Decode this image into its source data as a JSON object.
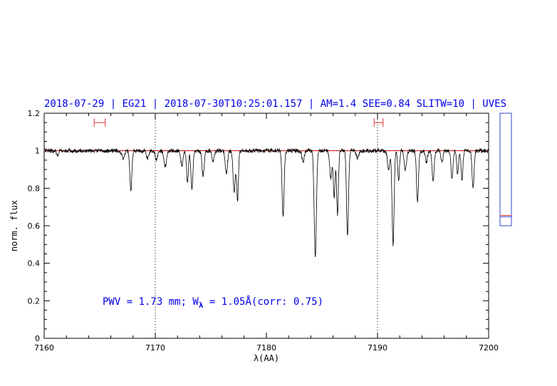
{
  "chart_data": {
    "type": "line",
    "title": "2018-07-29 | EG21 | 2018-07-30T10:25:01.157 | AM=1.4  SEE=0.84  SLITW=10 | UVES",
    "xlabel": "λ(AA)",
    "ylabel": "norm. flux",
    "xlim": [
      7160,
      7200
    ],
    "ylim": [
      0,
      1.2
    ],
    "x_ticks": [
      7160,
      7170,
      7180,
      7190,
      7200
    ],
    "x_tick_labels": [
      "7160",
      "7170",
      "7180",
      "7190",
      "7200"
    ],
    "y_ticks": [
      0,
      0.2,
      0.4,
      0.6,
      0.8,
      1,
      1.2
    ],
    "y_tick_labels": [
      "0",
      "0.2",
      "0.4",
      "0.6",
      "0.8",
      "1",
      "1.2"
    ],
    "reference_level": 1.0,
    "vertical_markers": [
      7170,
      7190
    ],
    "continuum_windows": [
      {
        "x_from": 7164.5,
        "x_to": 7165.5,
        "y": 1.15
      },
      {
        "x_from": 7189.7,
        "x_to": 7190.5,
        "y": 1.15
      }
    ],
    "side_bar": {
      "range": [
        0.6,
        1.2
      ],
      "marks": [
        0.655,
        0.648
      ]
    },
    "annotation": {
      "prefix": "PWV = 1.73 mm; W",
      "subscript": "λ",
      "suffix": " = 1.05Å(corr: 0.75)"
    },
    "absorption_lines": [
      {
        "x": 7161.2,
        "depth": 0.02,
        "width": 0.1
      },
      {
        "x": 7167.1,
        "depth": 0.04,
        "width": 0.12
      },
      {
        "x": 7167.8,
        "depth": 0.22,
        "width": 0.09
      },
      {
        "x": 7169.3,
        "depth": 0.04,
        "width": 0.1
      },
      {
        "x": 7170.1,
        "depth": 0.05,
        "width": 0.1
      },
      {
        "x": 7170.9,
        "depth": 0.08,
        "width": 0.12
      },
      {
        "x": 7172.4,
        "depth": 0.08,
        "width": 0.1
      },
      {
        "x": 7172.9,
        "depth": 0.17,
        "width": 0.08
      },
      {
        "x": 7173.3,
        "depth": 0.2,
        "width": 0.09
      },
      {
        "x": 7174.3,
        "depth": 0.13,
        "width": 0.1
      },
      {
        "x": 7175.2,
        "depth": 0.06,
        "width": 0.1
      },
      {
        "x": 7176.4,
        "depth": 0.12,
        "width": 0.1
      },
      {
        "x": 7177.1,
        "depth": 0.22,
        "width": 0.1
      },
      {
        "x": 7177.4,
        "depth": 0.27,
        "width": 0.08
      },
      {
        "x": 7181.5,
        "depth": 0.35,
        "width": 0.09
      },
      {
        "x": 7183.3,
        "depth": 0.06,
        "width": 0.1
      },
      {
        "x": 7184.4,
        "depth": 0.56,
        "width": 0.1
      },
      {
        "x": 7185.8,
        "depth": 0.15,
        "width": 0.1
      },
      {
        "x": 7186.1,
        "depth": 0.25,
        "width": 0.08
      },
      {
        "x": 7186.4,
        "depth": 0.34,
        "width": 0.08
      },
      {
        "x": 7187.3,
        "depth": 0.45,
        "width": 0.09
      },
      {
        "x": 7188.2,
        "depth": 0.04,
        "width": 0.1
      },
      {
        "x": 7191.0,
        "depth": 0.1,
        "width": 0.1
      },
      {
        "x": 7191.4,
        "depth": 0.5,
        "width": 0.09
      },
      {
        "x": 7191.9,
        "depth": 0.16,
        "width": 0.08
      },
      {
        "x": 7192.5,
        "depth": 0.1,
        "width": 0.1
      },
      {
        "x": 7193.6,
        "depth": 0.27,
        "width": 0.09
      },
      {
        "x": 7194.4,
        "depth": 0.06,
        "width": 0.1
      },
      {
        "x": 7195.0,
        "depth": 0.16,
        "width": 0.09
      },
      {
        "x": 7195.8,
        "depth": 0.06,
        "width": 0.1
      },
      {
        "x": 7196.7,
        "depth": 0.15,
        "width": 0.09
      },
      {
        "x": 7197.2,
        "depth": 0.12,
        "width": 0.08
      },
      {
        "x": 7197.6,
        "depth": 0.16,
        "width": 0.08
      },
      {
        "x": 7198.6,
        "depth": 0.2,
        "width": 0.09
      }
    ],
    "colors": {
      "spectrum": "#000000",
      "reference": "#cc0000",
      "title": "#0000ee",
      "markers": "#000000",
      "side_bar": "#3344cc",
      "continuum": "#dd3333"
    }
  }
}
